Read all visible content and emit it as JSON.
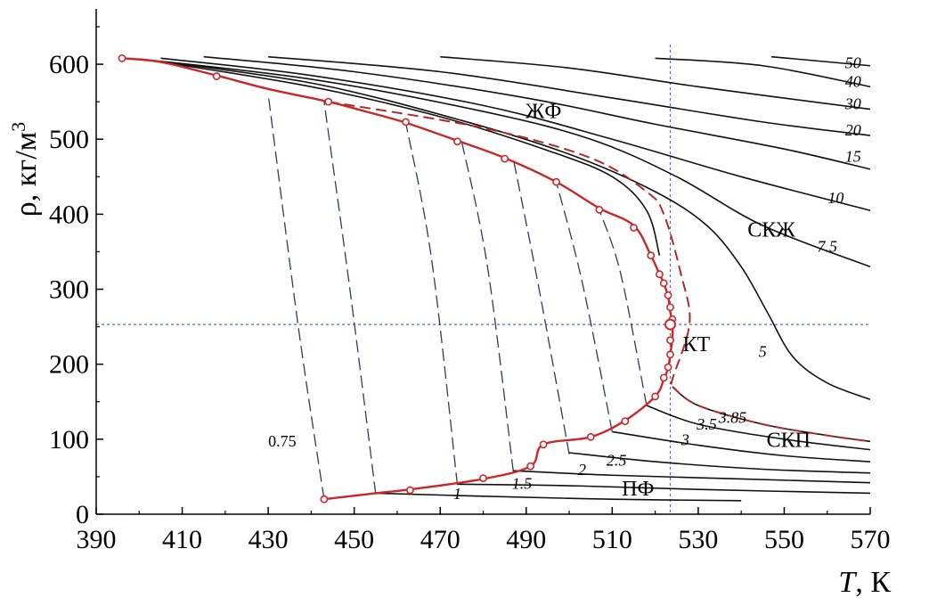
{
  "chart_data": {
    "type": "line",
    "xlabel_var": "T",
    "xlabel_unit": ", К",
    "ylabel": "ρ, кг/м",
    "ylabel_sup": "3",
    "xlim": [
      390,
      570
    ],
    "ylim": [
      0,
      650
    ],
    "x_ticks": [
      390,
      410,
      430,
      450,
      470,
      490,
      510,
      530,
      550,
      570
    ],
    "y_ticks": [
      0,
      100,
      200,
      300,
      400,
      500,
      600
    ],
    "critical_point": {
      "T": 523.5,
      "rho": 253,
      "label": "КТ"
    },
    "region_labels": [
      {
        "text": "ЖФ",
        "T": 494,
        "rho": 528
      },
      {
        "text": "СКЖ",
        "T": 547,
        "rho": 370
      },
      {
        "text": "СКП",
        "T": 551,
        "rho": 90
      },
      {
        "text": "ПФ",
        "T": 516,
        "rho": 25
      }
    ],
    "saturation_curve": {
      "name": "",
      "color": "#c8282a",
      "points": [
        [
          396,
          608
        ],
        [
          405,
          603
        ],
        [
          418,
          585
        ],
        [
          430,
          567
        ],
        [
          444,
          550
        ],
        [
          452,
          538
        ],
        [
          462,
          522
        ],
        [
          474,
          498
        ],
        [
          485,
          475
        ],
        [
          497,
          443
        ],
        [
          507,
          408
        ],
        [
          515,
          385
        ],
        [
          519,
          345
        ],
        [
          521,
          320
        ],
        [
          522,
          308
        ],
        [
          523,
          290
        ],
        [
          523.5,
          270
        ],
        [
          524,
          253
        ],
        [
          524,
          235
        ],
        [
          523.5,
          213
        ],
        [
          523,
          195
        ],
        [
          522,
          180
        ],
        [
          520,
          157
        ],
        [
          513,
          125
        ],
        [
          505,
          103
        ],
        [
          494,
          93
        ],
        [
          491,
          64
        ],
        [
          480,
          47
        ],
        [
          463,
          33
        ],
        [
          455,
          28
        ],
        [
          443,
          20
        ]
      ],
      "markers_T_rho": [
        [
          396,
          608
        ],
        [
          418,
          584
        ],
        [
          444,
          550
        ],
        [
          462,
          523
        ],
        [
          474,
          497
        ],
        [
          485,
          474
        ],
        [
          497,
          443
        ],
        [
          507,
          406
        ],
        [
          515,
          382
        ],
        [
          519,
          345
        ],
        [
          521,
          320
        ],
        [
          522,
          308
        ],
        [
          523,
          292
        ],
        [
          523.5,
          276
        ],
        [
          524,
          260
        ],
        [
          523.5,
          232
        ],
        [
          523.5,
          213
        ],
        [
          523,
          196
        ],
        [
          522,
          182
        ],
        [
          520,
          157
        ],
        [
          513,
          124
        ],
        [
          505,
          103
        ],
        [
          494,
          93
        ],
        [
          491,
          64
        ],
        [
          480,
          48
        ],
        [
          463,
          32
        ],
        [
          443,
          20
        ]
      ]
    },
    "isochores": [
      {
        "label": "0.75",
        "points": [
          [
            443,
            20
          ],
          [
            437,
            250
          ],
          [
            430,
            560
          ]
        ]
      },
      {
        "label": "",
        "points": [
          [
            455,
            27
          ],
          [
            449,
            300
          ],
          [
            443,
            550
          ]
        ]
      },
      {
        "label": "",
        "points": [
          [
            474,
            39
          ],
          [
            468,
            340
          ],
          [
            462,
            522
          ]
        ]
      },
      {
        "label": "",
        "points": [
          [
            487,
            57
          ],
          [
            481,
            330
          ],
          [
            475,
            497
          ]
        ]
      },
      {
        "label": "",
        "points": [
          [
            500,
            80
          ],
          [
            493,
            300
          ],
          [
            487,
            474
          ]
        ]
      },
      {
        "label": "",
        "points": [
          [
            510,
            110
          ],
          [
            503,
            310
          ],
          [
            497,
            443
          ]
        ]
      },
      {
        "label": "",
        "points": [
          [
            518,
            145
          ],
          [
            512,
            320
          ],
          [
            507,
            406
          ]
        ]
      }
    ],
    "isobars_liquid": [
      {
        "label": "50",
        "points": [
          [
            547,
            610
          ],
          [
            570,
            598
          ]
        ]
      },
      {
        "label": "40",
        "points": [
          [
            520,
            608
          ],
          [
            545,
            598
          ],
          [
            570,
            570
          ]
        ]
      },
      {
        "label": "30",
        "points": [
          [
            470,
            610
          ],
          [
            500,
            595
          ],
          [
            530,
            570
          ],
          [
            570,
            540
          ]
        ]
      },
      {
        "label": "20",
        "points": [
          [
            430,
            610
          ],
          [
            470,
            590
          ],
          [
            510,
            555
          ],
          [
            545,
            523
          ],
          [
            570,
            505
          ]
        ]
      },
      {
        "label": "15",
        "points": [
          [
            415,
            610
          ],
          [
            450,
            590
          ],
          [
            490,
            555
          ],
          [
            520,
            520
          ],
          [
            550,
            487
          ],
          [
            570,
            460
          ]
        ]
      },
      {
        "label": "10",
        "points": [
          [
            405,
            608
          ],
          [
            440,
            585
          ],
          [
            480,
            545
          ],
          [
            510,
            500
          ],
          [
            540,
            450
          ],
          [
            570,
            405
          ]
        ]
      },
      {
        "label": "7.5",
        "points": [
          [
            400,
            607
          ],
          [
            440,
            580
          ],
          [
            480,
            537
          ],
          [
            505,
            500
          ],
          [
            525,
            450
          ],
          [
            545,
            385
          ],
          [
            570,
            330
          ]
        ]
      },
      {
        "label": "5",
        "points": [
          [
            400,
            607
          ],
          [
            440,
            575
          ],
          [
            475,
            525
          ],
          [
            500,
            480
          ],
          [
            520,
            430
          ],
          [
            532,
            385
          ],
          [
            540,
            330
          ],
          [
            546,
            270
          ],
          [
            552,
            210
          ],
          [
            560,
            175
          ],
          [
            570,
            153
          ]
        ]
      },
      {
        "label": "",
        "points": [
          [
            405,
            603
          ],
          [
            440,
            570
          ],
          [
            470,
            530
          ],
          [
            495,
            485
          ],
          [
            510,
            450
          ],
          [
            518,
            405
          ],
          [
            521,
            345
          ]
        ]
      }
    ],
    "isobars_vapor": [
      {
        "label": "3.85",
        "points": [
          [
            524,
            170
          ],
          [
            530,
            145
          ],
          [
            545,
            120
          ],
          [
            560,
            105
          ],
          [
            570,
            97
          ]
        ]
      },
      {
        "label": "3.5",
        "points": [
          [
            518,
            145
          ],
          [
            530,
            120
          ],
          [
            550,
            100
          ],
          [
            570,
            86
          ]
        ]
      },
      {
        "label": "3",
        "points": [
          [
            510,
            110
          ],
          [
            530,
            92
          ],
          [
            550,
            78
          ],
          [
            570,
            70
          ]
        ]
      },
      {
        "label": "2.5",
        "points": [
          [
            500,
            82
          ],
          [
            520,
            70
          ],
          [
            545,
            60
          ],
          [
            570,
            55
          ]
        ]
      },
      {
        "label": "2",
        "points": [
          [
            487,
            58
          ],
          [
            510,
            52
          ],
          [
            540,
            47
          ],
          [
            570,
            42
          ]
        ]
      },
      {
        "label": "1.5",
        "points": [
          [
            474,
            40
          ],
          [
            500,
            38
          ],
          [
            530,
            33
          ],
          [
            570,
            28
          ]
        ]
      },
      {
        "label": "1",
        "points": [
          [
            455,
            28
          ],
          [
            480,
            24
          ],
          [
            510,
            20
          ],
          [
            540,
            18
          ]
        ]
      }
    ],
    "dashed_isobar_critical": {
      "label": "3.85",
      "points": [
        [
          444,
          550
        ],
        [
          480,
          515
        ],
        [
          505,
          475
        ],
        [
          518,
          430
        ],
        [
          522,
          400
        ],
        [
          526,
          320
        ],
        [
          528,
          255
        ],
        [
          524,
          180
        ],
        [
          524,
          170
        ]
      ]
    },
    "reference_lines": {
      "T_critical": 523.5,
      "rho_critical": 253
    }
  }
}
